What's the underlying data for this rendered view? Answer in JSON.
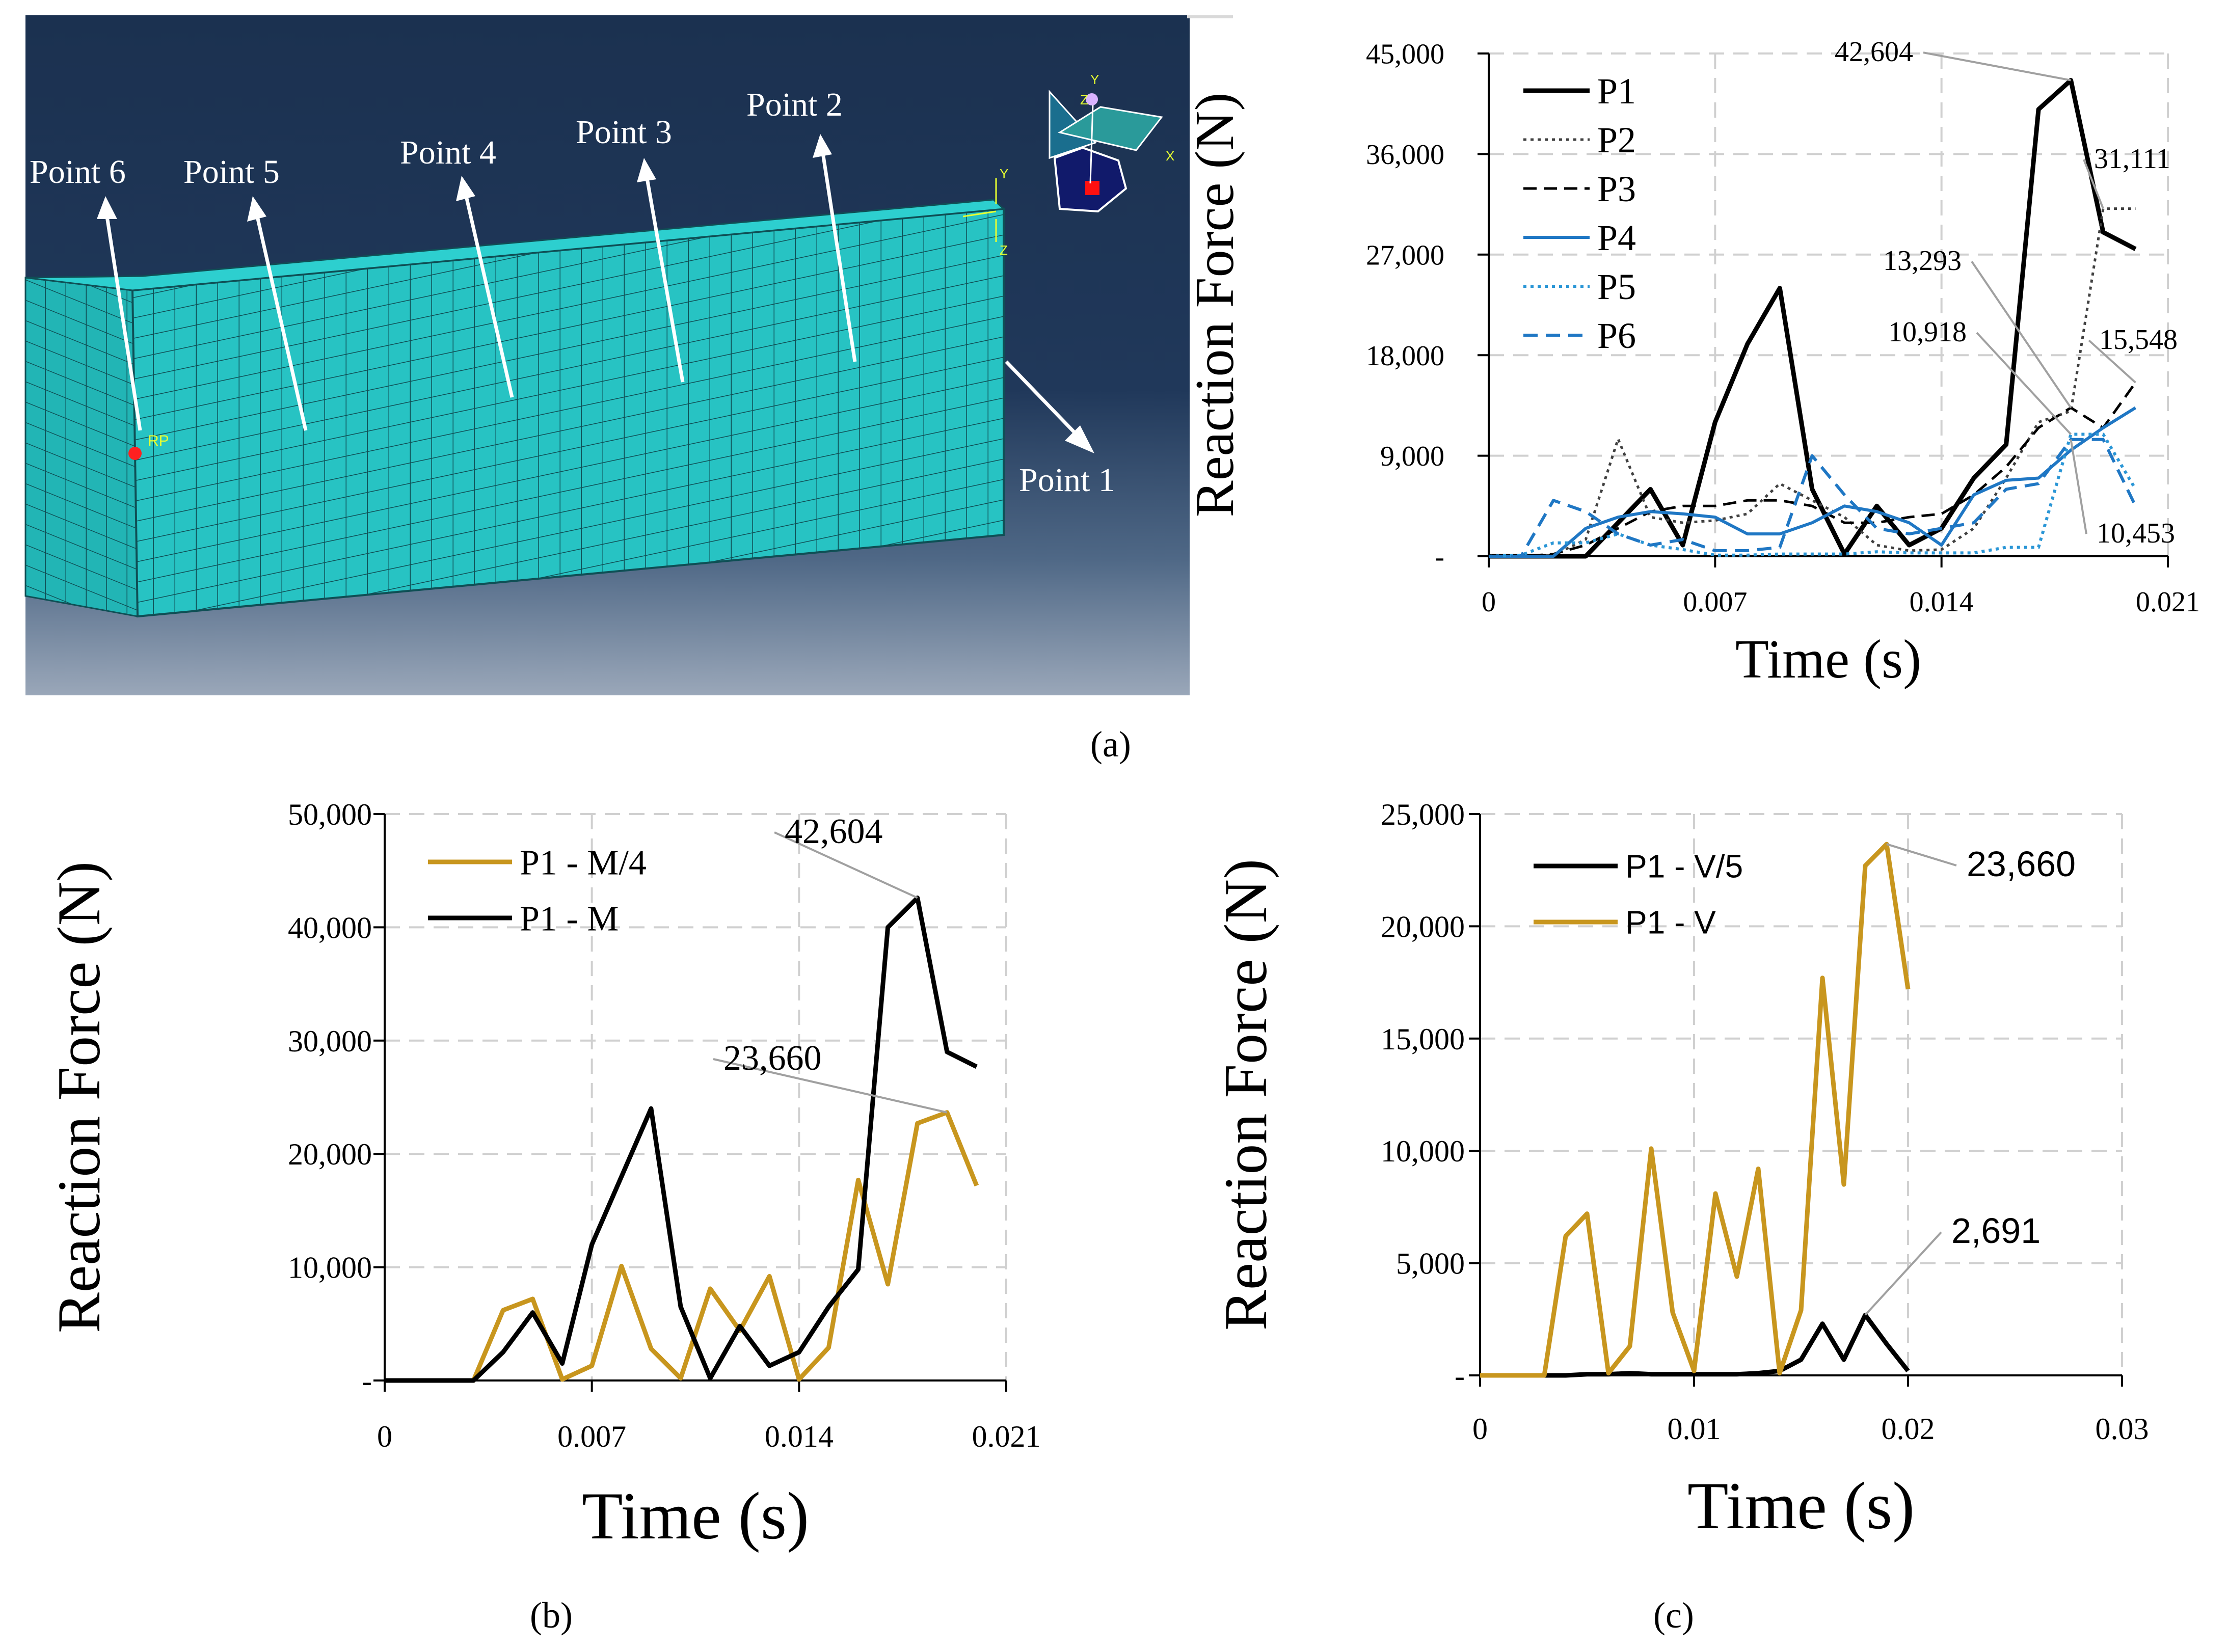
{
  "panel_a": {
    "point_labels": [
      "Point 1",
      "Point 2",
      "Point 3",
      "Point 4",
      "Point 5",
      "Point 6"
    ],
    "marker": "RP",
    "axis_letters": {
      "y": "Y",
      "z": "Z",
      "x": "X"
    }
  },
  "colors": {
    "black": "#000000",
    "dotgray": "#404040",
    "blue": "#1f77c4",
    "lightblue": "#2a96d6",
    "gold": "#c8961e",
    "mesh": "#27c3c3"
  },
  "chart_data": [
    {
      "id": "a",
      "type": "line",
      "ylabel": "Reaction Force (N)",
      "xlabel": "Time (s)",
      "xlim": [
        0,
        0.021
      ],
      "ylim": [
        0,
        45000
      ],
      "xticks": [
        0,
        0.007,
        0.014,
        0.021
      ],
      "xtick_labels": [
        "0",
        "0.007",
        "0.014",
        "0.021"
      ],
      "yticks": [
        0,
        9000,
        18000,
        27000,
        36000,
        45000
      ],
      "ytick_labels": [
        "-",
        "9,000",
        "18,000",
        "27,000",
        "36,000",
        "45,000"
      ],
      "x": [
        0,
        0.001,
        0.002,
        0.003,
        0.004,
        0.005,
        0.006,
        0.007,
        0.008,
        0.009,
        0.01,
        0.011,
        0.012,
        0.013,
        0.014,
        0.015,
        0.016,
        0.017,
        0.018,
        0.019,
        0.02
      ],
      "series": [
        {
          "name": "P1",
          "values": [
            0,
            0,
            0,
            0,
            3000,
            6000,
            1000,
            12000,
            19000,
            24000,
            6000,
            200,
            4500,
            1000,
            2500,
            7000,
            10000,
            40000,
            42604,
            29000,
            27500
          ]
        },
        {
          "name": "P2",
          "values": [
            0,
            0,
            100,
            1500,
            10500,
            3500,
            3000,
            3200,
            3800,
            6500,
            5000,
            3500,
            1000,
            500,
            600,
            2500,
            7000,
            12000,
            13000,
            31111,
            31111
          ]
        },
        {
          "name": "P3",
          "values": [
            0,
            0,
            200,
            1000,
            2500,
            4000,
            4500,
            4500,
            5000,
            5000,
            4500,
            3000,
            3000,
            3500,
            3800,
            5500,
            8000,
            11500,
            13293,
            11500,
            15548
          ]
        },
        {
          "name": "P4",
          "values": [
            0,
            0,
            0,
            2500,
            3500,
            4000,
            3800,
            3500,
            2000,
            2000,
            3000,
            4500,
            4000,
            3000,
            1000,
            5500,
            6800,
            7000,
            9500,
            11500,
            13293
          ]
        },
        {
          "name": "P5",
          "values": [
            0,
            100,
            1200,
            1200,
            2000,
            1000,
            600,
            100,
            100,
            200,
            200,
            200,
            400,
            300,
            300,
            300,
            800,
            800,
            10918,
            10918,
            6000
          ]
        },
        {
          "name": "P6",
          "values": [
            0,
            0,
            5000,
            4000,
            2000,
            1000,
            1500,
            500,
            500,
            800,
            9000,
            5500,
            2500,
            2000,
            2500,
            3000,
            6000,
            6500,
            10453,
            10453,
            4500
          ]
        }
      ],
      "annotations": [
        "42,604",
        "31,111",
        "13,293",
        "15,548",
        "10,918",
        "10,453"
      ]
    },
    {
      "id": "b",
      "type": "line",
      "ylabel": "Reaction Force (N)",
      "xlabel": "Time (s)",
      "xlim": [
        0,
        0.021
      ],
      "ylim": [
        0,
        50000
      ],
      "xticks": [
        0,
        0.007,
        0.014,
        0.021
      ],
      "xtick_labels": [
        "0",
        "0.007",
        "0.014",
        "0.021"
      ],
      "yticks": [
        0,
        10000,
        20000,
        30000,
        40000,
        50000
      ],
      "ytick_labels": [
        "-",
        "10,000",
        "20,000",
        "30,000",
        "40,000",
        "50,000"
      ],
      "x": [
        0,
        0.001,
        0.002,
        0.003,
        0.004,
        0.005,
        0.006,
        0.007,
        0.008,
        0.009,
        0.01,
        0.011,
        0.012,
        0.013,
        0.014,
        0.015,
        0.016,
        0.017,
        0.018,
        0.019,
        0.02
      ],
      "series": [
        {
          "name": "P1 - M/4",
          "values": [
            0,
            0,
            0,
            0,
            6200,
            7200,
            100,
            1300,
            10100,
            2800,
            200,
            8100,
            4400,
            9200,
            100,
            2900,
            17700,
            8500,
            22700,
            23660,
            17200
          ]
        },
        {
          "name": "P1 - M",
          "values": [
            0,
            0,
            0,
            0,
            2500,
            6000,
            1500,
            12000,
            18000,
            24000,
            6500,
            200,
            4800,
            1300,
            2500,
            6500,
            9800,
            40000,
            42604,
            29000,
            27700
          ]
        }
      ],
      "annotations": [
        "42,604",
        "23,660"
      ]
    },
    {
      "id": "c",
      "type": "line",
      "ylabel": "Reaction Force (N)",
      "xlabel": "Time (s)",
      "xlim": [
        0,
        0.03
      ],
      "ylim": [
        0,
        25000
      ],
      "xticks": [
        0,
        0.01,
        0.02,
        0.03
      ],
      "xtick_labels": [
        "0",
        "0.01",
        "0.02",
        "0.03"
      ],
      "yticks": [
        0,
        5000,
        10000,
        15000,
        20000,
        25000
      ],
      "ytick_labels": [
        "-",
        "5,000",
        "10,000",
        "15,000",
        "20,000",
        "25,000"
      ],
      "x": [
        0,
        0.001,
        0.002,
        0.003,
        0.004,
        0.005,
        0.006,
        0.007,
        0.008,
        0.009,
        0.01,
        0.011,
        0.012,
        0.013,
        0.014,
        0.015,
        0.016,
        0.017,
        0.018,
        0.019,
        0.02
      ],
      "series": [
        {
          "name": "P1 - V/5",
          "values": [
            0,
            0,
            0,
            0,
            0,
            50,
            50,
            100,
            50,
            50,
            50,
            50,
            50,
            100,
            200,
            700,
            2300,
            700,
            2691,
            1400,
            200
          ]
        },
        {
          "name": "P1 - V",
          "values": [
            0,
            0,
            0,
            0,
            6200,
            7200,
            100,
            1300,
            10100,
            2800,
            200,
            8100,
            4400,
            9200,
            100,
            2900,
            17700,
            8500,
            22700,
            23660,
            17200
          ]
        }
      ],
      "annotations": [
        "23,660",
        "2,691"
      ]
    }
  ],
  "sublabels": {
    "a": "(a)",
    "b": "(b)",
    "c": "(c)"
  }
}
